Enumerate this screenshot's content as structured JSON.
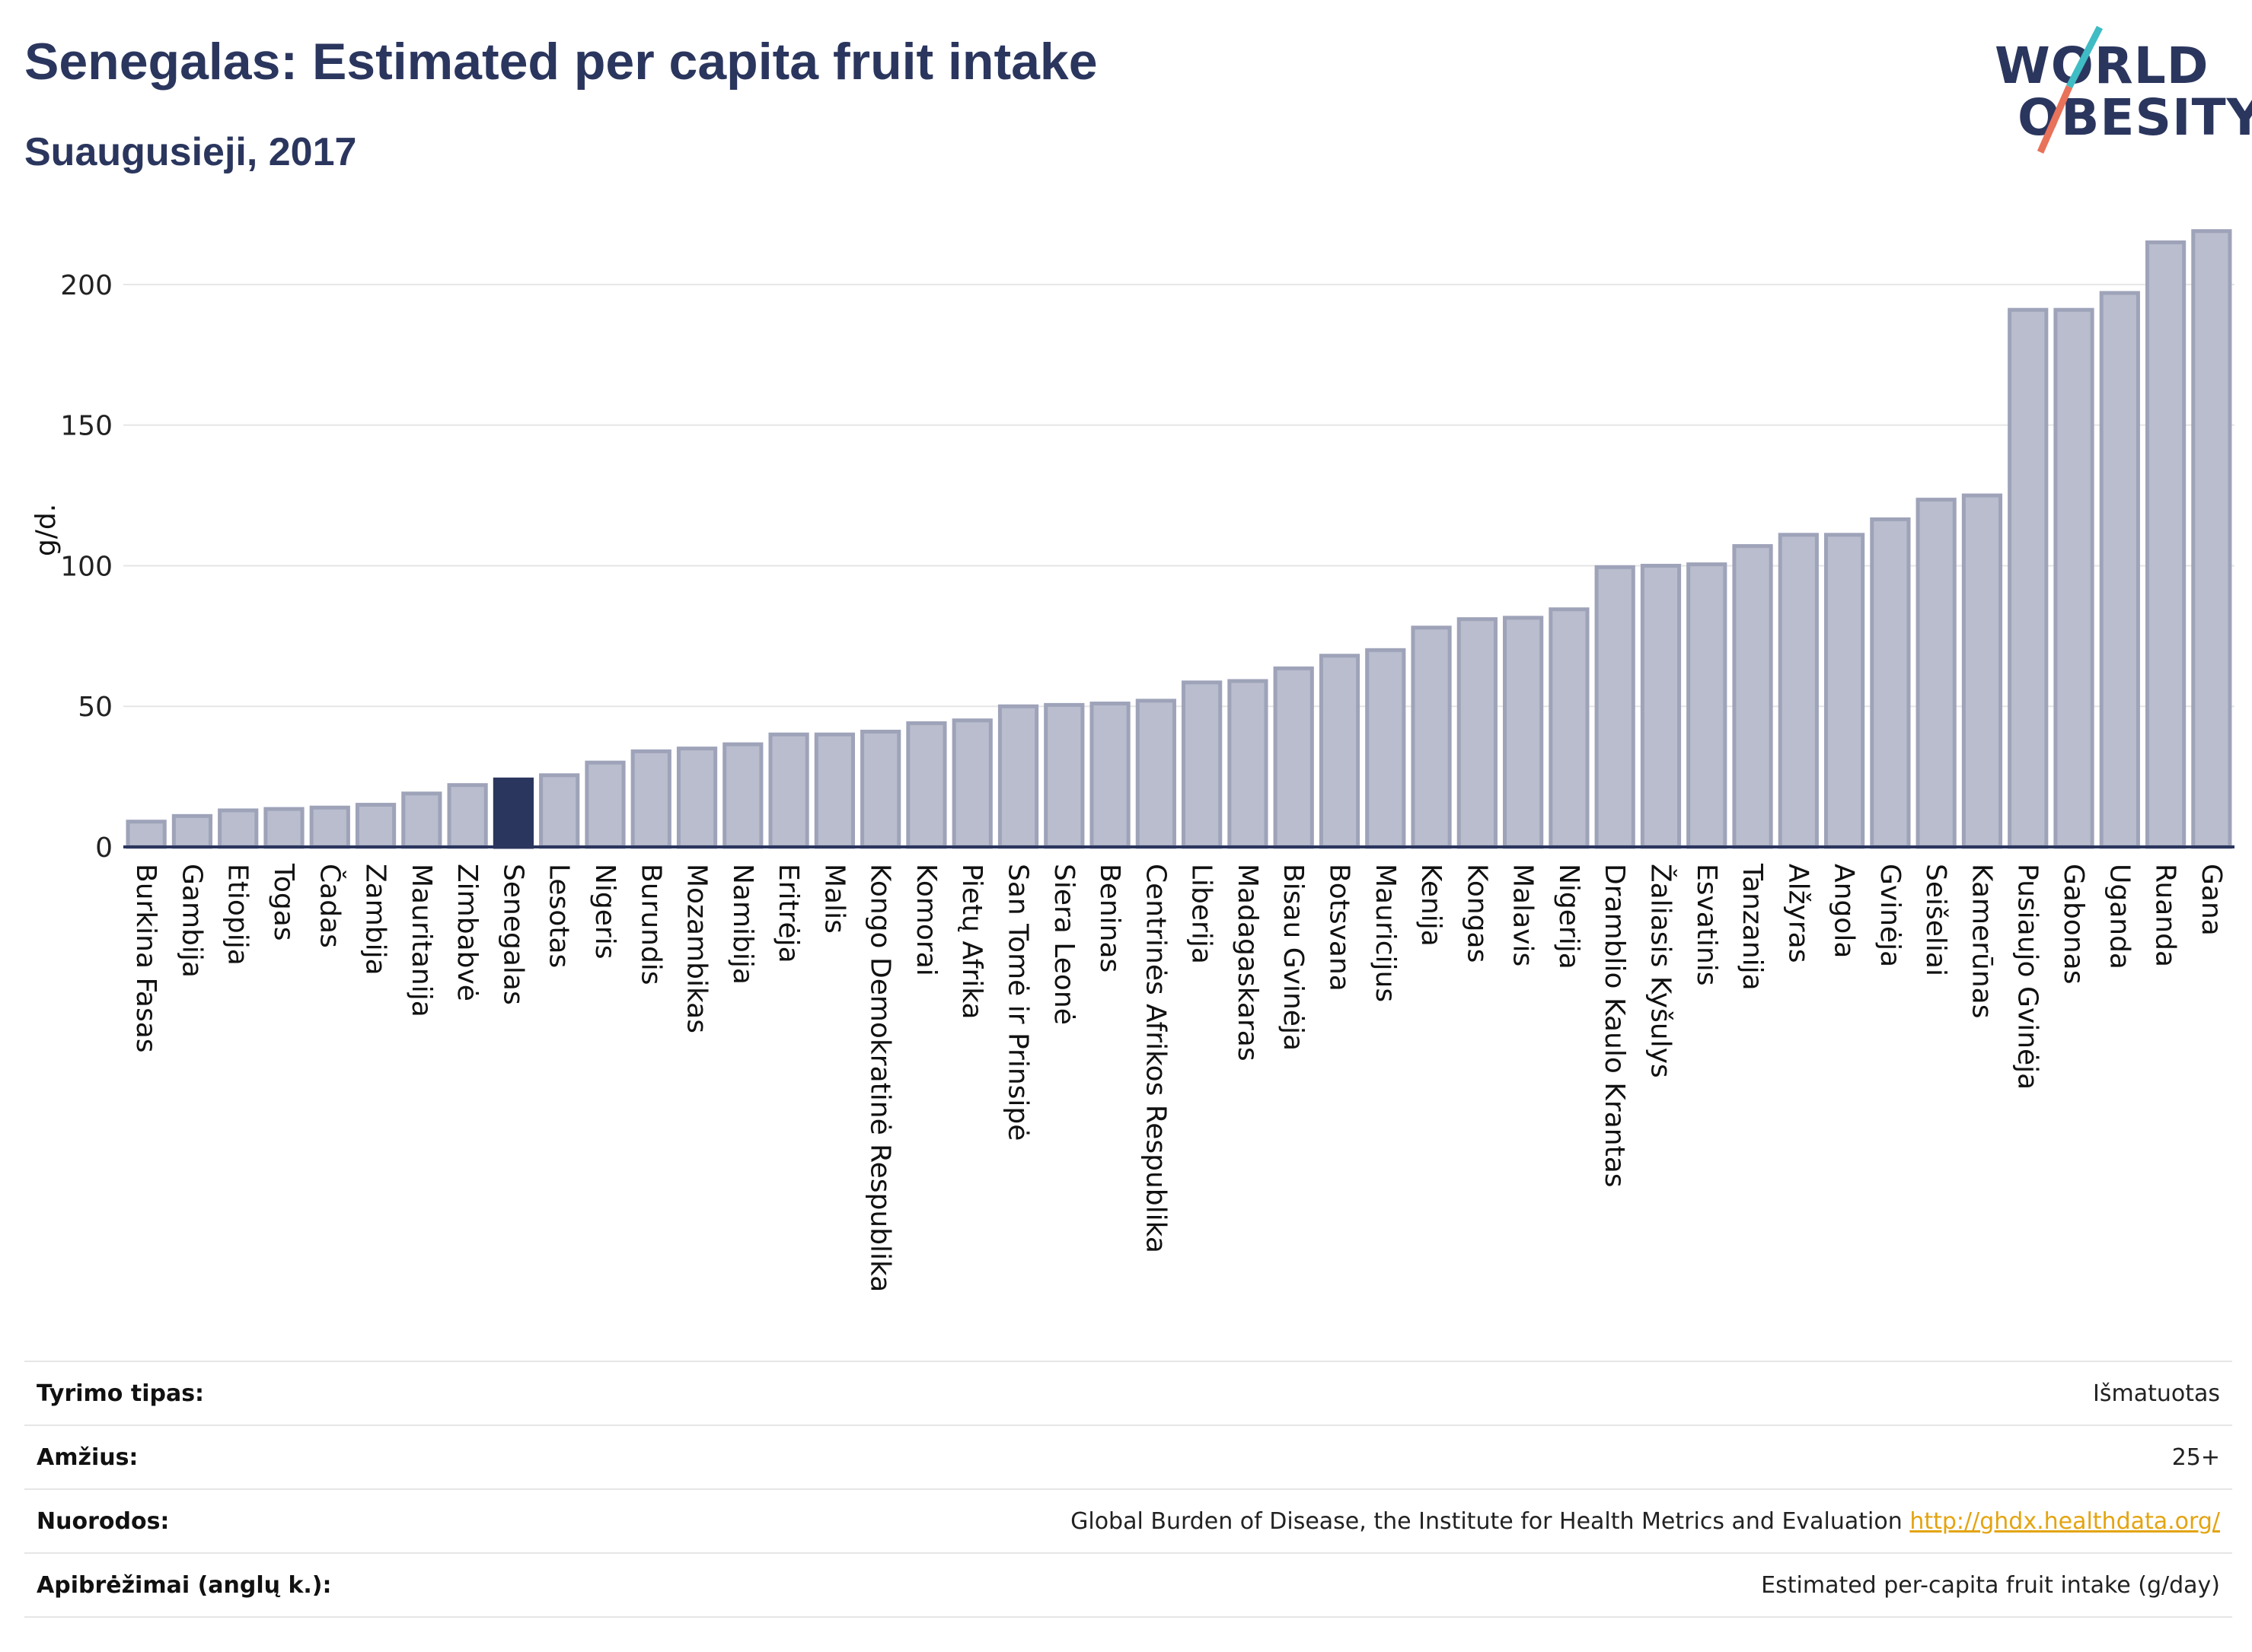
{
  "header": {
    "title": "Senegalas: Estimated per capita fruit intake",
    "subtitle": "Suaugusieji, 2017"
  },
  "logo": {
    "line1": "WORLD",
    "line2": "OBESITY",
    "slash_colors": [
      "#3fbcc4",
      "#e8725a"
    ]
  },
  "colors": {
    "bar": "#b9bdcd",
    "bar_border": "#9ea3b9",
    "highlight": "#2b365e",
    "grid": "#e6e6e6",
    "axis": "#2b365e"
  },
  "chart_data": {
    "type": "bar",
    "title": "Senegalas: Estimated per capita fruit intake",
    "subtitle": "Suaugusieji, 2017",
    "xlabel": "",
    "ylabel": "g/d.",
    "ylim": [
      0,
      220
    ],
    "yticks": [
      0,
      50,
      100,
      150,
      200
    ],
    "grid": true,
    "highlight": "Senegalas",
    "categories": [
      "Burkina Fasas",
      "Gambija",
      "Etiopija",
      "Togas",
      "Čadas",
      "Zambija",
      "Mauritanija",
      "Zimbabvė",
      "Senegalas",
      "Lesotas",
      "Nigeris",
      "Burundis",
      "Mozambikas",
      "Namibija",
      "Eritrėja",
      "Malis",
      "Kongo Demokratinė Respublika",
      "Komorai",
      "Pietų Afrika",
      "San Tomė ir Prinsipė",
      "Siera Leonė",
      "Beninas",
      "Centrinės Afrikos Respublika",
      "Liberija",
      "Madagaskaras",
      "Bisau Gvinėja",
      "Botsvana",
      "Mauricijus",
      "Kenija",
      "Kongas",
      "Malavis",
      "Nigerija",
      "Dramblio Kaulo Krantas",
      "Žaliasis Kyšulys",
      "Esvatinis",
      "Tanzanija",
      "Alžyras",
      "Angola",
      "Gvinėja",
      "Seišeliai",
      "Kamerūnas",
      "Pusiaujo Gvinėja",
      "Gabonas",
      "Uganda",
      "Ruanda",
      "Gana"
    ],
    "values": [
      9,
      11,
      13,
      13.5,
      14,
      15,
      19,
      22,
      24,
      25.5,
      30,
      34,
      35,
      36.5,
      40,
      40,
      41,
      44,
      45,
      50,
      50.5,
      51,
      52,
      58.5,
      59,
      63.5,
      68,
      70,
      78,
      81,
      81.5,
      84.5,
      99.5,
      100,
      100.5,
      107,
      111,
      111,
      116.5,
      123.5,
      125,
      191,
      191,
      197,
      215,
      219
    ]
  },
  "meta": {
    "rows": [
      {
        "key": "Tyrimo tipas:",
        "value": "Išmatuotas"
      },
      {
        "key": "Amžius:",
        "value": "25+"
      },
      {
        "key": "Nuorodos:",
        "value": "Global Burden of Disease, the Institute for Health Metrics and Evaluation",
        "link": "http://ghdx.healthdata.org/"
      },
      {
        "key": "Apibrėžimai (anglų k.):",
        "value": "Estimated per-capita fruit intake (g/day)"
      }
    ]
  }
}
